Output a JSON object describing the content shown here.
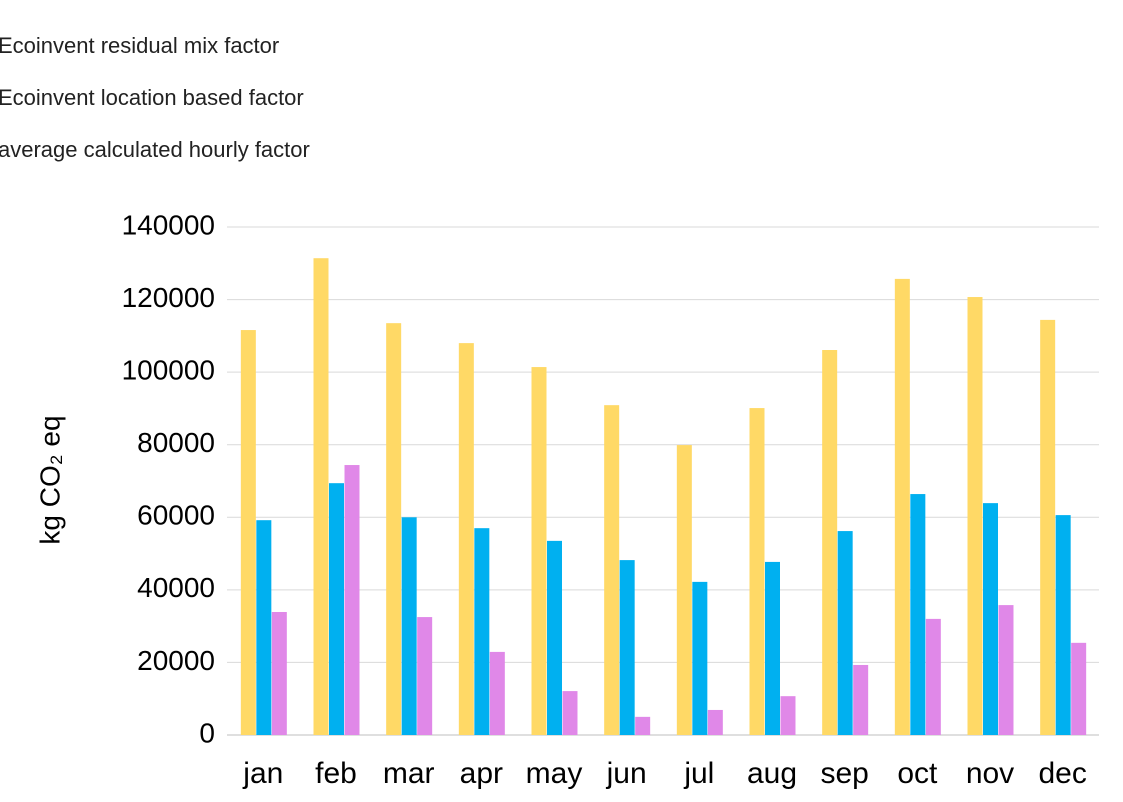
{
  "chart_data": {
    "type": "bar",
    "y_label": "kg CO₂ eq",
    "categories": [
      "jan",
      "feb",
      "mar",
      "apr",
      "may",
      "jun",
      "jul",
      "aug",
      "sep",
      "oct",
      "nov",
      "dec"
    ],
    "series": [
      {
        "name": "Ecoinvent residual mix factor",
        "color": "#ffd966",
        "values": [
          111600,
          131400,
          113500,
          108000,
          101400,
          90900,
          79900,
          90100,
          106100,
          125700,
          120700,
          114400
        ]
      },
      {
        "name": "Ecoinvent location based factor",
        "color": "#00b0f0",
        "values": [
          59200,
          69400,
          60000,
          57000,
          53500,
          48200,
          42200,
          47700,
          56200,
          66400,
          63900,
          60600
        ]
      },
      {
        "name": "average calculated hourly factor",
        "color": "#e088e8",
        "values": [
          33900,
          74400,
          32500,
          22900,
          12100,
          5000,
          6900,
          10700,
          19300,
          32000,
          35800,
          25400
        ]
      }
    ],
    "ylim": [
      0,
      140000
    ],
    "yticks": [
      0,
      20000,
      40000,
      60000,
      80000,
      100000,
      120000,
      140000
    ],
    "grid": true
  }
}
